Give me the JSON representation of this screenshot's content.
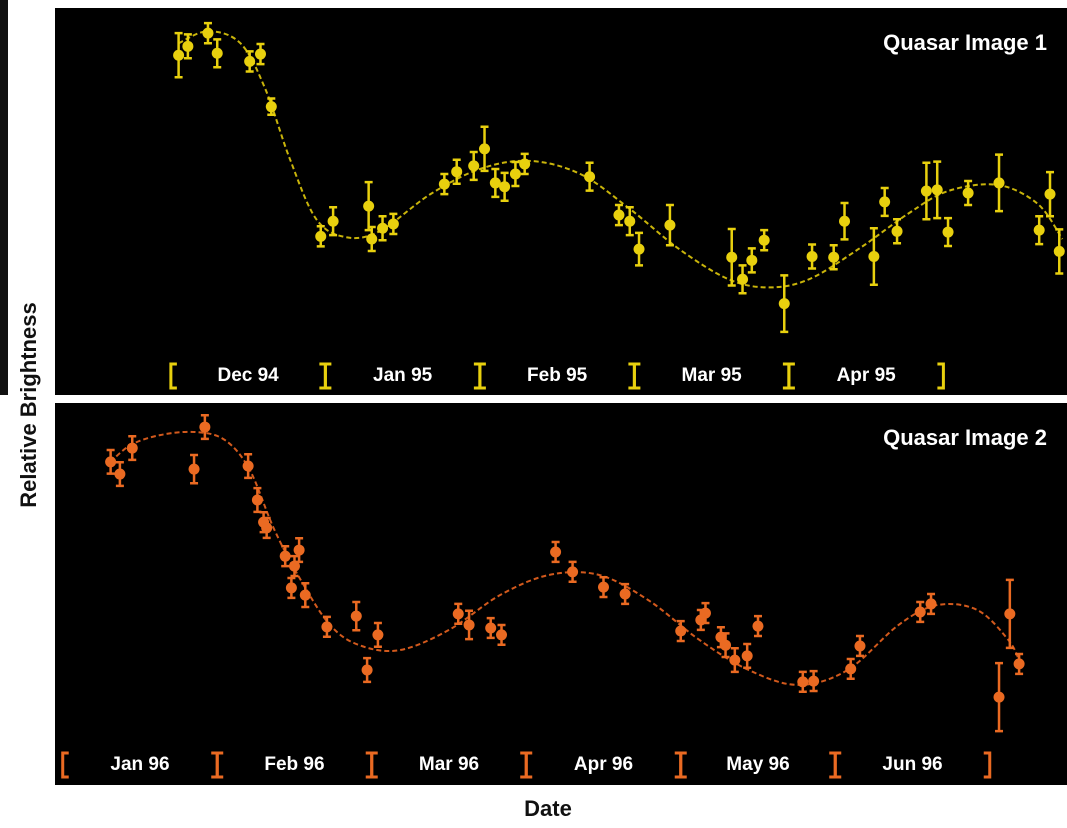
{
  "y_label": "Relative Brightness",
  "x_label": "Date",
  "chart_data": [
    {
      "type": "scatter",
      "title": "Quasar Image 1",
      "color": "#e8d00e",
      "xlim": [
        -0.75,
        5.8
      ],
      "ylim": [
        0,
        10
      ],
      "xticks": [
        {
          "value": 0.5,
          "label": "Dec 94"
        },
        {
          "value": 1.5,
          "label": "Jan 95"
        },
        {
          "value": 2.5,
          "label": "Feb 95"
        },
        {
          "value": 3.5,
          "label": "Mar 95"
        },
        {
          "value": 4.5,
          "label": "Apr 95"
        }
      ],
      "x": [
        0.05,
        0.11,
        0.24,
        0.3,
        0.51,
        0.58,
        0.65,
        0.97,
        1.05,
        1.28,
        1.3,
        1.37,
        1.44,
        1.77,
        1.85,
        1.96,
        2.03,
        2.1,
        2.16,
        2.23,
        2.29,
        2.71,
        2.9,
        2.97,
        3.03,
        3.23,
        3.63,
        3.7,
        3.76,
        3.84,
        3.97,
        4.15,
        4.29,
        4.36,
        4.55,
        4.62,
        4.7,
        4.89,
        4.96,
        5.03,
        5.16,
        5.36,
        5.62,
        5.69,
        5.75
      ],
      "values": [
        8.78,
        9.01,
        9.35,
        8.83,
        8.62,
        8.81,
        7.45,
        4.1,
        4.49,
        4.88,
        4.03,
        4.31,
        4.42,
        5.45,
        5.77,
        5.92,
        6.36,
        5.48,
        5.38,
        5.71,
        5.97,
        5.64,
        4.65,
        4.49,
        3.77,
        4.39,
        3.56,
        2.99,
        3.48,
        4.0,
        2.36,
        3.58,
        3.56,
        4.49,
        3.58,
        4.99,
        4.23,
        5.27,
        5.3,
        4.21,
        5.22,
        5.48,
        4.26,
        5.19,
        3.71
      ],
      "errors": [
        0.57,
        0.31,
        0.26,
        0.36,
        0.26,
        0.26,
        0.21,
        0.26,
        0.36,
        0.62,
        0.31,
        0.31,
        0.26,
        0.26,
        0.31,
        0.36,
        0.57,
        0.36,
        0.36,
        0.31,
        0.26,
        0.36,
        0.26,
        0.36,
        0.42,
        0.52,
        0.73,
        0.36,
        0.31,
        0.26,
        0.73,
        0.31,
        0.31,
        0.47,
        0.73,
        0.36,
        0.31,
        0.73,
        0.73,
        0.36,
        0.31,
        0.73,
        0.36,
        0.57,
        0.57
      ],
      "fit": {
        "color": "#c9b40a",
        "x": [
          0.05,
          0.24,
          0.45,
          0.61,
          0.77,
          0.94,
          1.13,
          1.35,
          1.68,
          2.0,
          2.32,
          2.65,
          2.97,
          3.29,
          3.61,
          3.87,
          4.13,
          4.45,
          4.77,
          5.03,
          5.35,
          5.61,
          5.77
        ],
        "values": [
          9.09,
          9.4,
          9.09,
          7.92,
          6.1,
          4.55,
          4.08,
          4.23,
          5.19,
          5.84,
          6.05,
          5.71,
          4.81,
          3.77,
          2.99,
          2.78,
          2.99,
          3.77,
          4.68,
          5.27,
          5.43,
          4.94,
          4.03
        ]
      }
    },
    {
      "type": "scatter",
      "title": "Quasar Image 2",
      "color": "#ea6a22",
      "xlim": [
        -0.05,
        6.5
      ],
      "ylim": [
        0,
        10
      ],
      "xticks": [
        {
          "value": 0.5,
          "label": "Jan 96"
        },
        {
          "value": 1.5,
          "label": "Feb 96"
        },
        {
          "value": 2.5,
          "label": "Mar 96"
        },
        {
          "value": 3.5,
          "label": "Apr 96"
        },
        {
          "value": 4.5,
          "label": "May 96"
        },
        {
          "value": 5.5,
          "label": "Jun 96"
        }
      ],
      "x": [
        0.31,
        0.37,
        0.45,
        0.85,
        0.92,
        1.2,
        1.26,
        1.3,
        1.32,
        1.44,
        1.48,
        1.5,
        1.53,
        1.57,
        1.71,
        1.9,
        1.97,
        2.04,
        2.56,
        2.63,
        2.77,
        2.84,
        3.19,
        3.3,
        3.5,
        3.64,
        4.0,
        4.13,
        4.16,
        4.26,
        4.29,
        4.35,
        4.43,
        4.5,
        4.79,
        4.86,
        5.1,
        5.16,
        5.55,
        5.62,
        6.06,
        6.13,
        6.19
      ],
      "values": [
        8.46,
        8.14,
        8.82,
        8.27,
        9.37,
        8.35,
        7.46,
        6.88,
        6.73,
        5.99,
        5.16,
        5.73,
        6.15,
        4.97,
        4.14,
        4.42,
        3.01,
        3.93,
        4.48,
        4.19,
        4.11,
        3.93,
        6.1,
        5.58,
        5.18,
        5.0,
        4.03,
        4.32,
        4.5,
        3.87,
        3.66,
        3.27,
        3.38,
        4.16,
        2.7,
        2.72,
        3.04,
        3.64,
        4.53,
        4.74,
        2.3,
        4.48,
        3.17
      ],
      "errors": [
        0.31,
        0.31,
        0.31,
        0.37,
        0.31,
        0.31,
        0.31,
        0.26,
        0.26,
        0.26,
        0.26,
        0.26,
        0.31,
        0.31,
        0.26,
        0.37,
        0.31,
        0.31,
        0.26,
        0.37,
        0.26,
        0.26,
        0.26,
        0.26,
        0.26,
        0.26,
        0.26,
        0.26,
        0.26,
        0.26,
        0.31,
        0.31,
        0.31,
        0.26,
        0.26,
        0.26,
        0.26,
        0.26,
        0.26,
        0.26,
        0.89,
        0.89,
        0.26
      ],
      "fit": {
        "color": "#d2591c",
        "x": [
          0.31,
          0.44,
          0.63,
          0.86,
          1.05,
          1.21,
          1.37,
          1.54,
          1.73,
          1.92,
          2.18,
          2.5,
          2.83,
          3.15,
          3.47,
          3.79,
          4.12,
          4.44,
          4.76,
          5.08,
          5.41,
          5.66,
          5.92,
          6.12,
          6.19
        ],
        "values": [
          8.46,
          8.9,
          9.16,
          9.24,
          9.03,
          8.25,
          6.68,
          5.37,
          4.19,
          3.66,
          3.53,
          4.06,
          4.97,
          5.5,
          5.5,
          4.84,
          3.8,
          3.01,
          2.62,
          3.01,
          4.19,
          4.71,
          4.58,
          3.8,
          3.27
        ]
      }
    }
  ]
}
